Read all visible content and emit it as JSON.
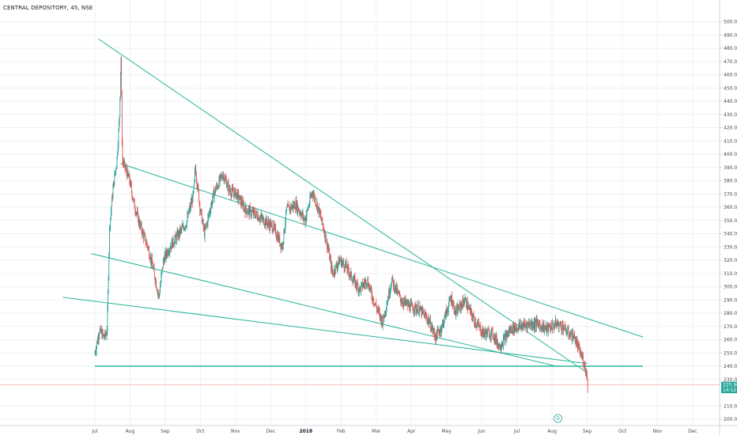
{
  "header": {
    "title": "CENTRAL DEPOSITORY, 45, NSE"
  },
  "colors": {
    "up": "#26a69a",
    "down": "#ef5350",
    "trendline": "#2bb59a",
    "grid": "#eef1f5",
    "axis": "#d1d4dc",
    "text": "#4a4a4a"
  },
  "chart_data": {
    "type": "candlestick",
    "title": "CENTRAL DEPOSITORY, 45, NSE",
    "xlabel": "",
    "ylabel": "",
    "ylim": [
      195,
      505
    ],
    "grid": true,
    "y_ticks": [
      500,
      490,
      480,
      470,
      460,
      450,
      440,
      430,
      420,
      410,
      400,
      390,
      380,
      370,
      360,
      350,
      340,
      330,
      320,
      310,
      300,
      290,
      280,
      270,
      260,
      250,
      240,
      230,
      210,
      200
    ],
    "y_tick_labels": [
      "500.00",
      "490.00",
      "480.00",
      "470.00",
      "460.00",
      "450.00",
      "440.00",
      "430.00",
      "420.00",
      "410.00",
      "400.00",
      "390.00",
      "380.00",
      "370.00",
      "360.00",
      "350.00",
      "340.00",
      "330.00",
      "320.00",
      "310.00",
      "300.00",
      "290.00",
      "280.00",
      "270.00",
      "260.00",
      "250.00",
      "240.00",
      "230.00",
      "210.00",
      "200.00"
    ],
    "x_ticks": [
      "Jul",
      "Aug",
      "Sep",
      "Oct",
      "Nov",
      "Dec",
      "2018",
      "Feb",
      "Mar",
      "Apr",
      "May",
      "Jun",
      "Jul",
      "Aug",
      "Sep",
      "Oct",
      "Nov",
      "Dec"
    ],
    "price_path": [
      [
        0,
        250
      ],
      [
        0.5,
        267
      ],
      [
        1.0,
        262
      ],
      [
        1.3,
        265
      ],
      [
        1.4,
        285
      ],
      [
        1.6,
        345
      ],
      [
        2.0,
        375
      ],
      [
        2.4,
        395
      ],
      [
        2.7,
        430
      ],
      [
        2.85,
        478
      ],
      [
        3.0,
        395
      ],
      [
        3.3,
        390
      ],
      [
        3.8,
        380
      ],
      [
        4.3,
        362
      ],
      [
        5.0,
        345
      ],
      [
        5.8,
        330
      ],
      [
        6.5,
        310
      ],
      [
        7.0,
        292
      ],
      [
        7.5,
        320
      ],
      [
        8.2,
        330
      ],
      [
        9.0,
        338
      ],
      [
        10.0,
        348
      ],
      [
        10.8,
        370
      ],
      [
        11.0,
        390
      ],
      [
        11.5,
        360
      ],
      [
        12.0,
        340
      ],
      [
        12.5,
        355
      ],
      [
        13.0,
        370
      ],
      [
        14.0,
        385
      ],
      [
        14.8,
        372
      ],
      [
        15.5,
        370
      ],
      [
        16.5,
        358
      ],
      [
        17.5,
        355
      ],
      [
        18.5,
        350
      ],
      [
        19.5,
        345
      ],
      [
        20.0,
        338
      ],
      [
        20.5,
        330
      ],
      [
        21.0,
        358
      ],
      [
        22.0,
        362
      ],
      [
        23.0,
        350
      ],
      [
        23.8,
        372
      ],
      [
        24.5,
        358
      ],
      [
        25.0,
        345
      ],
      [
        25.5,
        330
      ],
      [
        26.0,
        310
      ],
      [
        26.8,
        320
      ],
      [
        27.5,
        315
      ],
      [
        28.3,
        305
      ],
      [
        29.0,
        298
      ],
      [
        29.8,
        305
      ],
      [
        30.5,
        290
      ],
      [
        31.5,
        273
      ],
      [
        32.5,
        305
      ],
      [
        33.5,
        290
      ],
      [
        34.5,
        285
      ],
      [
        35.5,
        283
      ],
      [
        36.5,
        275
      ],
      [
        37.3,
        262
      ],
      [
        38.0,
        270
      ],
      [
        39.0,
        292
      ],
      [
        39.5,
        280
      ],
      [
        40.5,
        290
      ],
      [
        41.5,
        275
      ],
      [
        42.5,
        265
      ],
      [
        43.5,
        265
      ],
      [
        44.3,
        255
      ],
      [
        45.0,
        262
      ],
      [
        45.5,
        268
      ],
      [
        46.5,
        270
      ],
      [
        47.5,
        272
      ],
      [
        48.5,
        272
      ],
      [
        49.5,
        268
      ],
      [
        50.5,
        272
      ],
      [
        51.2,
        270
      ],
      [
        51.8,
        265
      ],
      [
        52.5,
        262
      ],
      [
        53.0,
        252
      ],
      [
        53.5,
        244
      ],
      [
        53.8,
        236
      ],
      [
        54.0,
        224
      ]
    ],
    "trendlines": [
      {
        "p1": [
          0.4,
          487
        ],
        "p2": [
          53.9,
          235
        ]
      },
      {
        "p1": [
          2.8,
          393
        ],
        "p2": [
          60.0,
          262
        ]
      },
      {
        "p1": [
          -0.4,
          325
        ],
        "p2": [
          50.5,
          240
        ]
      },
      {
        "p1": [
          -3.5,
          292
        ],
        "p2": [
          53.9,
          242
        ]
      },
      {
        "p1": [
          0.0,
          240
        ],
        "p2": [
          60.0,
          240
        ]
      }
    ],
    "horizontal_lines": [
      {
        "value": 225.9,
        "color": "#ef5350",
        "style": "solid"
      }
    ],
    "price_labels": [
      {
        "value": 225.9,
        "text": "225.90",
        "color": "#26a69a"
      },
      {
        "value": 222.0,
        "text": "14:52",
        "color": "#26a69a"
      }
    ],
    "marker": "D"
  }
}
